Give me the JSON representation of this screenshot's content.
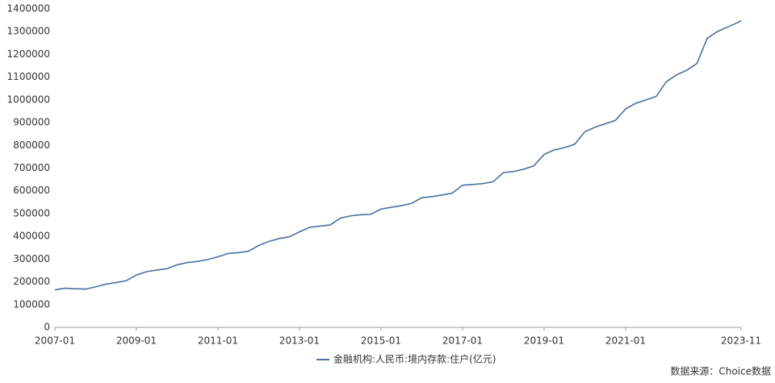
{
  "chart_data": {
    "type": "line",
    "x": [
      "2007-01",
      "2007-04",
      "2007-07",
      "2007-10",
      "2008-01",
      "2008-04",
      "2008-07",
      "2008-10",
      "2009-01",
      "2009-04",
      "2009-07",
      "2009-10",
      "2010-01",
      "2010-04",
      "2010-07",
      "2010-10",
      "2011-01",
      "2011-04",
      "2011-07",
      "2011-10",
      "2012-01",
      "2012-04",
      "2012-07",
      "2012-10",
      "2013-01",
      "2013-04",
      "2013-07",
      "2013-10",
      "2014-01",
      "2014-04",
      "2014-07",
      "2014-10",
      "2015-01",
      "2015-04",
      "2015-07",
      "2015-10",
      "2016-01",
      "2016-04",
      "2016-07",
      "2016-10",
      "2017-01",
      "2017-04",
      "2017-07",
      "2017-10",
      "2018-01",
      "2018-04",
      "2018-07",
      "2018-10",
      "2019-01",
      "2019-04",
      "2019-07",
      "2019-10",
      "2020-01",
      "2020-04",
      "2020-07",
      "2020-10",
      "2021-01",
      "2021-04",
      "2021-07",
      "2021-10",
      "2022-01",
      "2022-04",
      "2022-07",
      "2022-10",
      "2023-01",
      "2023-04",
      "2023-07",
      "2023-10",
      "2023-11"
    ],
    "series": [
      {
        "name": "金融机构:人民币:境内存款:住户(亿元)",
        "color": "#4a70a0",
        "values": [
          165000,
          172000,
          170000,
          168000,
          178000,
          190000,
          197000,
          205000,
          230000,
          245000,
          252000,
          258000,
          275000,
          285000,
          290000,
          298000,
          310000,
          325000,
          328000,
          335000,
          360000,
          378000,
          390000,
          398000,
          420000,
          440000,
          445000,
          450000,
          480000,
          490000,
          495000,
          497000,
          520000,
          528000,
          535000,
          545000,
          570000,
          575000,
          582000,
          590000,
          625000,
          628000,
          632000,
          640000,
          680000,
          685000,
          695000,
          710000,
          760000,
          780000,
          790000,
          805000,
          860000,
          880000,
          895000,
          910000,
          960000,
          985000,
          1000000,
          1015000,
          1080000,
          1110000,
          1130000,
          1160000,
          1270000,
          1300000,
          1320000,
          1340000,
          1348000
        ]
      }
    ],
    "xlim": [
      "2007-01",
      "2023-11"
    ],
    "xticks": [
      "2007-01",
      "2009-01",
      "2011-01",
      "2013-01",
      "2015-01",
      "2017-01",
      "2019-01",
      "2021-01",
      "2023-11"
    ],
    "ylim": [
      0,
      1400000
    ],
    "yticks": [
      0,
      100000,
      200000,
      300000,
      400000,
      500000,
      600000,
      700000,
      800000,
      900000,
      1000000,
      1100000,
      1200000,
      1300000,
      1400000
    ],
    "legend": "bottom",
    "source": "数据来源：Choice数据"
  }
}
